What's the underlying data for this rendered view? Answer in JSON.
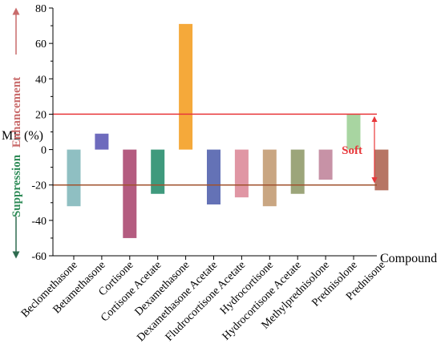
{
  "chart_data": {
    "type": "bar",
    "title": "",
    "ylabel": "ME (%)",
    "xlabel": "Compound",
    "ylim": [
      -60,
      80
    ],
    "yticks": [
      80,
      60,
      40,
      20,
      0,
      -20,
      -40,
      -60
    ],
    "categories": [
      "Beclomethasone",
      "Betamethasone",
      "Cortisone",
      "Cortisone Acetate",
      "Dexamethasone",
      "Dexamethasone Acetate",
      "Fludrocortisone Acetate",
      "Hydrocortisone",
      "Hydrocortisone Acetate",
      "Methylprednisolone",
      "Prednisolone",
      "Prednisone"
    ],
    "values": [
      -32,
      9,
      -50,
      -25,
      71,
      -31,
      -27,
      -32,
      -25,
      -17,
      20,
      -23
    ],
    "bar_colors": [
      "#8fbfc2",
      "#6e6bbd",
      "#b45c80",
      "#3f9a7d",
      "#f5a93a",
      "#6472b6",
      "#e096a4",
      "#c9a682",
      "#9ca57a",
      "#c792a6",
      "#a8d5a1",
      "#b77564"
    ],
    "reference_lines": [
      {
        "value": 20,
        "color": "#e8373a"
      },
      {
        "value": -20,
        "color": "#a0522d"
      }
    ],
    "annotations": {
      "enhancement": {
        "text": "Enhancement",
        "color": "#c96b6b"
      },
      "suppression": {
        "text": "Suppression",
        "color": "#2e8b57"
      },
      "soft": {
        "text": "Soft",
        "color": "#e8373a"
      }
    },
    "grid": false
  }
}
